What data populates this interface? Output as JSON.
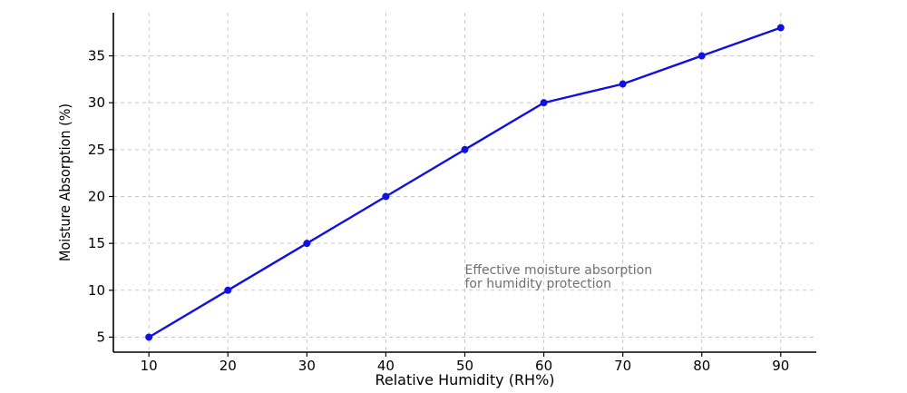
{
  "chart_data": {
    "type": "line",
    "title": "",
    "xlabel": "Relative Humidity (RH%)",
    "ylabel": "Moisture Absorption (%)",
    "xlim": [
      5.5,
      94.5
    ],
    "ylim": [
      3.4,
      39.6
    ],
    "x_ticks": [
      10,
      20,
      30,
      40,
      50,
      60,
      70,
      80,
      90
    ],
    "y_ticks": [
      5,
      10,
      15,
      20,
      25,
      30,
      35
    ],
    "grid": true,
    "legend": "none",
    "series": [
      {
        "color": "#1010e0",
        "marker": "circle",
        "x": [
          10,
          20,
          30,
          40,
          50,
          60,
          70,
          80,
          90
        ],
        "y": [
          5,
          10,
          15,
          20,
          25,
          30,
          32,
          35,
          38
        ]
      }
    ],
    "annotations": [
      {
        "lines": [
          "Effective moisture absorption",
          "for humidity protection"
        ],
        "x": 50,
        "y": 11.7,
        "color": "#6f6f6f"
      }
    ]
  }
}
